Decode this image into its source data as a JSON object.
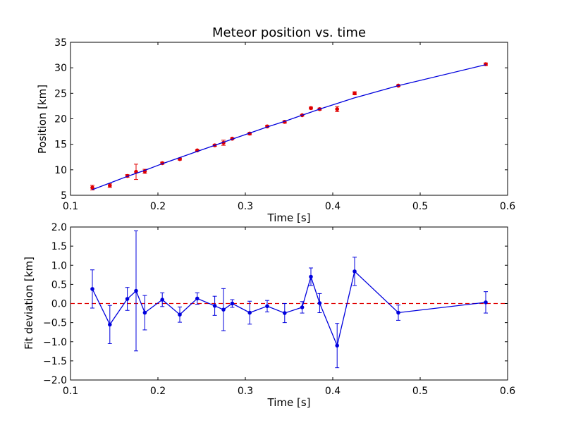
{
  "chart_data": [
    {
      "type": "scatter",
      "title": "Meteor position vs. time",
      "xlabel": "Time [s]",
      "ylabel": "Position [km]",
      "xlim": [
        0.1,
        0.6
      ],
      "ylim": [
        5,
        35
      ],
      "xticks": [
        "0.1",
        "0.2",
        "0.3",
        "0.4",
        "0.5",
        "0.6"
      ],
      "yticks": [
        "5",
        "10",
        "15",
        "20",
        "25",
        "30",
        "35"
      ],
      "grid": false,
      "series": [
        {
          "kind": "errorbar-points",
          "color": "#e00000",
          "x": [
            0.125,
            0.145,
            0.165,
            0.175,
            0.185,
            0.205,
            0.225,
            0.245,
            0.265,
            0.275,
            0.285,
            0.305,
            0.325,
            0.345,
            0.365,
            0.375,
            0.385,
            0.405,
            0.425,
            0.475,
            0.575
          ],
          "y": [
            6.5,
            6.9,
            8.8,
            9.6,
            9.7,
            11.3,
            12.1,
            13.8,
            14.8,
            15.3,
            16.1,
            17.1,
            18.5,
            19.4,
            20.7,
            22.1,
            21.9,
            21.9,
            25.0,
            26.5,
            30.7
          ],
          "err": [
            0.45,
            0.35,
            0.25,
            1.5,
            0.4,
            0.2,
            0.2,
            0.15,
            0.2,
            0.5,
            0.15,
            0.25,
            0.2,
            0.25,
            0.15,
            0.2,
            0.2,
            0.5,
            0.3,
            0.15,
            0.25
          ]
        },
        {
          "kind": "fit-line",
          "color": "#0000dd",
          "x": [
            0.125,
            0.145,
            0.165,
            0.175,
            0.185,
            0.205,
            0.225,
            0.245,
            0.265,
            0.275,
            0.285,
            0.305,
            0.325,
            0.345,
            0.365,
            0.375,
            0.385,
            0.405,
            0.425,
            0.475,
            0.575
          ],
          "y": [
            6.1,
            7.4,
            8.7,
            9.3,
            9.9,
            11.2,
            12.4,
            13.6,
            14.8,
            15.4,
            16.0,
            17.2,
            18.4,
            19.5,
            20.7,
            21.3,
            21.9,
            23.0,
            24.1,
            26.5,
            30.6
          ]
        }
      ]
    },
    {
      "type": "line",
      "title": "",
      "xlabel": "Time [s]",
      "ylabel": "Fit deviation [km]",
      "xlim": [
        0.1,
        0.6
      ],
      "ylim": [
        -2.0,
        2.0
      ],
      "xticks": [
        "0.1",
        "0.2",
        "0.3",
        "0.4",
        "0.5",
        "0.6"
      ],
      "yticks": [
        "−2.0",
        "−1.5",
        "−1.0",
        "−0.5",
        "0.0",
        "0.5",
        "1.0",
        "1.5",
        "2.0"
      ],
      "grid": false,
      "reference_line": {
        "y": 0.0,
        "style": "dashed",
        "color": "#e00000"
      },
      "series": [
        {
          "kind": "errorbar-line",
          "color": "#0000dd",
          "x": [
            0.125,
            0.145,
            0.165,
            0.175,
            0.185,
            0.205,
            0.225,
            0.245,
            0.265,
            0.275,
            0.285,
            0.305,
            0.325,
            0.345,
            0.365,
            0.375,
            0.385,
            0.405,
            0.425,
            0.475,
            0.575
          ],
          "y": [
            0.38,
            -0.55,
            0.12,
            0.33,
            -0.24,
            0.1,
            -0.29,
            0.13,
            -0.06,
            -0.16,
            0.0,
            -0.24,
            -0.07,
            -0.25,
            -0.1,
            0.7,
            0.01,
            -1.1,
            0.84,
            -0.24,
            0.03
          ],
          "err": [
            0.5,
            0.5,
            0.3,
            1.57,
            0.45,
            0.18,
            0.2,
            0.15,
            0.25,
            0.55,
            0.1,
            0.3,
            0.15,
            0.25,
            0.15,
            0.23,
            0.25,
            0.58,
            0.37,
            0.2,
            0.28
          ]
        }
      ]
    }
  ]
}
